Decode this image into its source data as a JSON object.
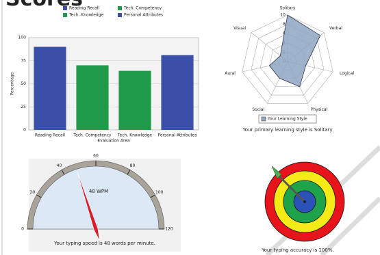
{
  "header": {
    "title": "Scores"
  },
  "chart_data": [
    {
      "type": "bar",
      "categories": [
        "Reading Recall",
        "Tech. Competency",
        "Tech. Knowledge",
        "Personal Attributes"
      ],
      "values": [
        90,
        70,
        64,
        81
      ],
      "colors": [
        "#3a4fa8",
        "#1f9a4a",
        "#1f9a4a",
        "#3a4fa8"
      ],
      "legend": [
        "Reading Recall",
        "Tech. Competency",
        "Tech. Knowledge",
        "Personal Attributes"
      ],
      "ylabel": "Percentage",
      "xlabel": "Evaluation Area",
      "ylim": [
        0,
        100
      ],
      "yticks": [
        0,
        25,
        50,
        75,
        100
      ],
      "grid": true
    },
    {
      "type": "radar",
      "categories": [
        "Solitary",
        "Verbal",
        "Logical",
        "Physical",
        "Social",
        "Aural",
        "Visual"
      ],
      "values": [
        10,
        9,
        4,
        6,
        4,
        4,
        2
      ],
      "rlim": [
        0,
        10
      ],
      "rticks": [
        0,
        2,
        4,
        6,
        8,
        10
      ],
      "color": "#8fa6c4",
      "legend": "Your Learning Style",
      "caption": "Your primary learning style is Solitary"
    },
    {
      "type": "gauge",
      "values": [
        48
      ],
      "value_labels": [
        "48 WPM"
      ],
      "lim": [
        0,
        120
      ],
      "ticks": [
        0,
        20,
        40,
        60,
        80,
        100,
        120
      ],
      "caption": "Your typing speed is 48 words per minute."
    },
    {
      "type": "target",
      "values": [
        100
      ],
      "caption": "Your typing accuracy is 100%."
    }
  ]
}
